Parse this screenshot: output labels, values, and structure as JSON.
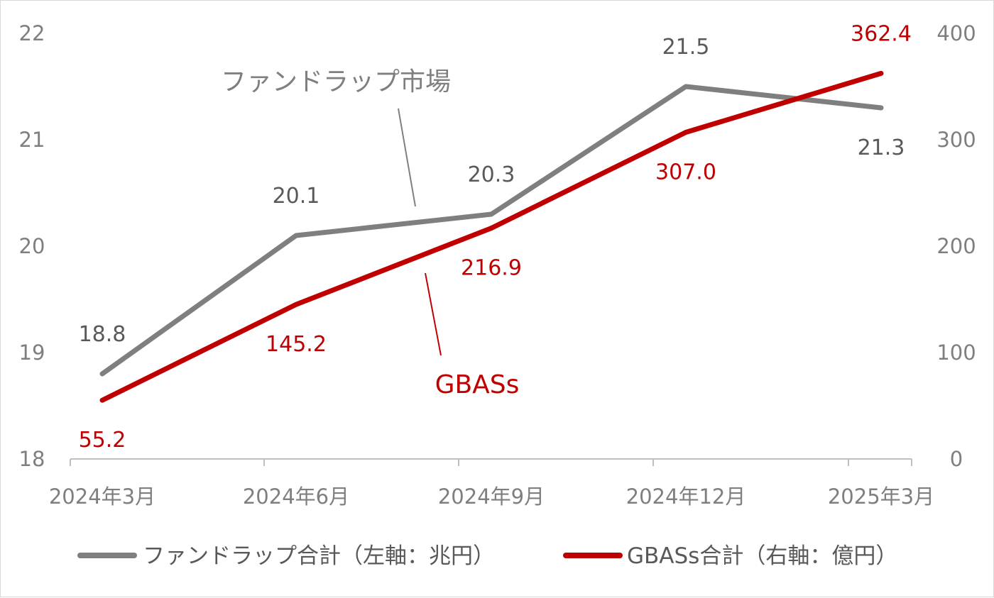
{
  "chart_data": {
    "type": "line",
    "categories": [
      "2024年3月",
      "2024年6月",
      "2024年9月",
      "2024年12月",
      "2025年3月"
    ],
    "series": [
      {
        "name": "ファンドラップ合計（左軸：兆円）",
        "axis": "left",
        "color": "#7f7f7f",
        "values": [
          18.8,
          20.1,
          20.3,
          21.5,
          21.3
        ],
        "labels": [
          "18.8",
          "20.1",
          "20.3",
          "21.5",
          "21.3"
        ]
      },
      {
        "name": "GBASs合計（右軸：億円）",
        "axis": "right",
        "color": "#c00000",
        "values": [
          55.2,
          145.2,
          216.9,
          307.0,
          362.4
        ],
        "labels": [
          "55.2",
          "145.2",
          "216.9",
          "307.0",
          "362.4"
        ]
      }
    ],
    "y_left": {
      "ylim": [
        18,
        22
      ],
      "ticks": [
        "18",
        "19",
        "20",
        "21",
        "22"
      ]
    },
    "y_right": {
      "ylim": [
        0,
        400
      ],
      "ticks": [
        "0",
        "100",
        "200",
        "300",
        "400"
      ]
    },
    "annotations": [
      {
        "text": "ファンドラップ市場",
        "color": "#7f7f7f"
      },
      {
        "text": "GBASs",
        "color": "#c00000"
      }
    ],
    "legend": "bottom",
    "grid": false
  }
}
